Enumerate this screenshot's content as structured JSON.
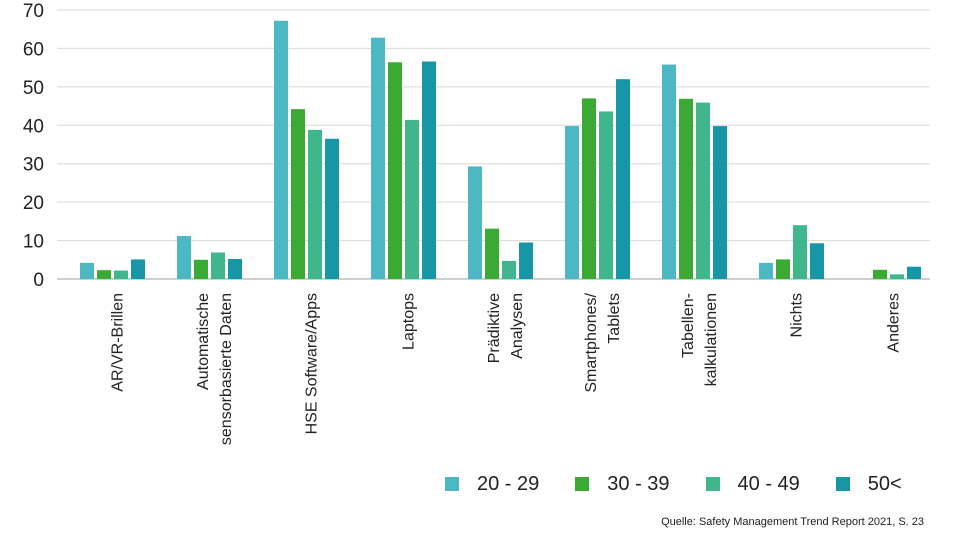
{
  "chart_data": {
    "type": "bar",
    "title": "",
    "xlabel": "",
    "ylabel": "",
    "ylim": [
      0,
      70
    ],
    "yticks": [
      0,
      10,
      20,
      30,
      40,
      50,
      60,
      70
    ],
    "grid": true,
    "legend_position": "bottom-right",
    "categories": [
      [
        "AR/VR-Brillen"
      ],
      [
        "Automatische",
        "sensorbasierte Daten"
      ],
      [
        "HSE Software/Apps"
      ],
      [
        "Laptops"
      ],
      [
        "Prädiktive",
        "Analysen"
      ],
      [
        "Smartphones/",
        "Tablets"
      ],
      [
        "Tabellen-",
        "kalkulationen"
      ],
      [
        "Nichts"
      ],
      [
        "Anderes"
      ]
    ],
    "series": [
      {
        "name": "20 - 29",
        "color": "#4bb8c4",
        "values": [
          4.2,
          11.2,
          67.2,
          62.8,
          29.3,
          39.8,
          55.8,
          4.2,
          0
        ]
      },
      {
        "name": "30 - 39",
        "color": "#3aaa35",
        "values": [
          2.3,
          5.0,
          44.2,
          56.4,
          13.1,
          47.0,
          46.9,
          5.1,
          2.4
        ]
      },
      {
        "name": "40 - 49",
        "color": "#3fb68b",
        "values": [
          2.2,
          6.9,
          38.8,
          41.4,
          4.7,
          43.6,
          45.9,
          14.0,
          1.2
        ]
      },
      {
        "name": "50<",
        "color": "#1797a6",
        "values": [
          5.1,
          5.2,
          36.5,
          56.6,
          9.5,
          52.0,
          39.8,
          9.3,
          3.2
        ]
      }
    ]
  },
  "source": "Quelle: Safety Management Trend Report 2021, S. 23",
  "colors": {
    "grid": "#d9d9d9",
    "axis": "#bfbfbf"
  }
}
